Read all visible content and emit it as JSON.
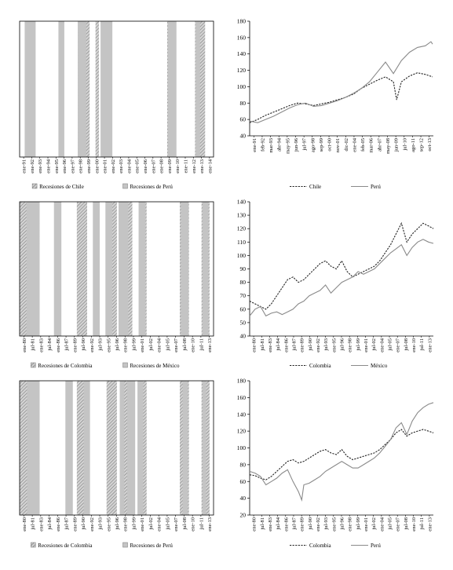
{
  "colors": {
    "gray_bar": "#c4c4c4",
    "hatch_bar": "#a9a9a9",
    "line_dark": "#222222",
    "line_gray": "#8a8a8a"
  },
  "chart_data": [
    {
      "type": "bar",
      "subtype": "recession-shading",
      "x_tick_labels": [
        "ene-91",
        "ene-92",
        "ene-93",
        "ene-94",
        "ene-95",
        "ene-96",
        "ene-97",
        "ene-98",
        "ene-99",
        "ene-00",
        "ene-01",
        "ene-02",
        "ene-03",
        "ene-04",
        "ene-05",
        "ene-06",
        "ene-07",
        "ene-08",
        "ene-09",
        "ene-10",
        "ene-11",
        "ene-12",
        "ene-13",
        "ene-14"
      ],
      "x_range": [
        1991.0,
        2014.0
      ],
      "legend": [
        "Recesiones de Chile",
        "Recesiones de Perú"
      ],
      "legend_placement": "bottom",
      "series": [
        {
          "name": "Recesiones de Chile",
          "style": "hatched",
          "periods": [
            [
              1997.9,
              1999.3
            ],
            [
              2000.0,
              2000.4
            ],
            [
              2008.5,
              2009.5
            ],
            [
              2011.8,
              2013.0
            ]
          ]
        },
        {
          "name": "Recesiones de Perú",
          "style": "solid",
          "periods": [
            [
              1991.6,
              1992.9
            ],
            [
              1995.6,
              1996.3
            ],
            [
              1997.9,
              1998.9
            ],
            [
              2000.6,
              2002.0
            ],
            [
              2008.6,
              2009.6
            ],
            [
              2011.9,
              2012.4
            ]
          ]
        }
      ]
    },
    {
      "type": "line",
      "x_tick_labels": [
        "ene-91",
        "feb-92",
        "mar-93",
        "abr-94",
        "may-95",
        "jun-96",
        "jul-97",
        "ago-98",
        "sep-99",
        "oct-00",
        "nov-01",
        "dic-02",
        "ene-04",
        "feb-05",
        "mar-06",
        "abr-07",
        "may-08",
        "jun-09",
        "jul-10",
        "ago-11",
        "sep-12",
        "oct-13"
      ],
      "x_range": [
        1991.0,
        2014.0
      ],
      "y_ticks": [
        40,
        60,
        80,
        100,
        120,
        140,
        160,
        180
      ],
      "ylim": [
        40,
        180
      ],
      "legend": [
        "Chile",
        "Perú"
      ],
      "legend_placement": "bottom",
      "series": [
        {
          "name": "Chile",
          "style": "dashed",
          "x": [
            1991,
            1992,
            1993,
            1994,
            1995,
            1996,
            1997,
            1998,
            1999,
            2000,
            2001,
            2002,
            2003,
            2004,
            2005,
            2006,
            2007,
            2008,
            2009,
            2009.4,
            2010,
            2011,
            2012,
            2013,
            2013.9
          ],
          "values": [
            56,
            60,
            65,
            69,
            73,
            77,
            80,
            79,
            77,
            79,
            81,
            84,
            87,
            91,
            98,
            103,
            108,
            112,
            106,
            84,
            106,
            113,
            117,
            115,
            112
          ]
        },
        {
          "name": "Perú",
          "style": "solid",
          "x": [
            1991,
            1992,
            1993,
            1994,
            1995,
            1996,
            1997,
            1998,
            1999,
            2000,
            2001,
            2002,
            2003,
            2004,
            2005,
            2006,
            2007,
            2008,
            2009,
            2010,
            2011,
            2012,
            2013,
            2013.7,
            2013.9
          ],
          "values": [
            58,
            56,
            60,
            64,
            69,
            74,
            78,
            80,
            76,
            77,
            80,
            83,
            87,
            92,
            98,
            106,
            118,
            130,
            116,
            132,
            142,
            148,
            150,
            155,
            152
          ]
        }
      ]
    },
    {
      "type": "bar",
      "subtype": "recession-shading",
      "x_tick_labels": [
        "ene-80",
        "jul-81",
        "ene-83",
        "jul-84",
        "ene-86",
        "jul-87",
        "ene-89",
        "jul-90",
        "ene-92",
        "jul-93",
        "ene-95",
        "jul-96",
        "ene-98",
        "jul-99",
        "ene-01",
        "jul-02",
        "ene-04",
        "jul-05",
        "ene-07",
        "jul-08",
        "ene-10",
        "jul-11",
        "ene-13"
      ],
      "x_range": [
        1980.0,
        2013.9
      ],
      "legend": [
        "Recesiones de Colombia",
        "Recesiones de México"
      ],
      "legend_placement": "bottom",
      "series": [
        {
          "name": "Recesiones de Colombia",
          "style": "hatched",
          "periods": [
            [
              1980.0,
              1983.5
            ],
            [
              1990.0,
              1991.8
            ],
            [
              1995.2,
              1997.0
            ],
            [
              1998.2,
              1999.7
            ],
            [
              2001.0,
              2002.2
            ],
            [
              2008.0,
              2009.6
            ],
            [
              2011.8,
              2013.2
            ]
          ]
        },
        {
          "name": "Recesiones de México",
          "style": "solid",
          "periods": [
            [
              1981.2,
              1983.5
            ],
            [
              1986.0,
              1987.3
            ],
            [
              1992.8,
              1994.0
            ],
            [
              1995.0,
              1996.2
            ],
            [
              1997.3,
              1999.0
            ],
            [
              2000.8,
              2002.0
            ],
            [
              2008.2,
              2009.5
            ],
            [
              2012.0,
              2013.0
            ]
          ]
        }
      ]
    },
    {
      "type": "line",
      "x_tick_labels": [
        "ene-80",
        "jul-81",
        "ene-83",
        "jul-84",
        "ene-86",
        "jul-87",
        "ene-89",
        "jul-90",
        "ene-92",
        "jul-93",
        "ene-95",
        "jul-96",
        "ene-98",
        "jul-99",
        "ene-01",
        "jul-02",
        "ene-04",
        "jul-05",
        "ene-07",
        "jul-08",
        "ene-10",
        "jul-11",
        "ene-13"
      ],
      "x_range": [
        1980.0,
        2013.9
      ],
      "y_ticks": [
        40,
        50,
        60,
        70,
        80,
        90,
        100,
        110,
        120,
        130,
        140
      ],
      "ylim": [
        40,
        140
      ],
      "legend": [
        "Colombia",
        "México"
      ],
      "legend_placement": "bottom",
      "series": [
        {
          "name": "Colombia",
          "style": "dashed",
          "x": [
            1980,
            1981,
            1982,
            1983,
            1984,
            1985,
            1986,
            1987,
            1988,
            1989,
            1990,
            1991,
            1992,
            1993,
            1994,
            1995,
            1996,
            1997,
            1998,
            1999,
            2000,
            2001,
            2002,
            2003,
            2004,
            2005,
            2006,
            2007,
            2008,
            2009,
            2010,
            2011,
            2012,
            2013,
            2013.9
          ],
          "values": [
            66,
            64,
            62,
            60,
            64,
            70,
            76,
            82,
            84,
            80,
            82,
            86,
            90,
            94,
            96,
            92,
            90,
            96,
            88,
            84,
            86,
            88,
            90,
            92,
            96,
            102,
            108,
            116,
            124,
            110,
            116,
            120,
            124,
            122,
            120
          ]
        },
        {
          "name": "México",
          "style": "solid",
          "x": [
            1980,
            1981,
            1982,
            1983,
            1984,
            1985,
            1986,
            1987,
            1988,
            1989,
            1990,
            1991,
            1992,
            1993,
            1994,
            1995,
            1996,
            1997,
            1998,
            1999,
            2000,
            2001,
            2002,
            2003,
            2004,
            2005,
            2006,
            2007,
            2008,
            2009,
            2010,
            2011,
            2012,
            2013,
            2013.9
          ],
          "values": [
            55,
            60,
            62,
            55,
            57,
            58,
            56,
            58,
            60,
            64,
            66,
            70,
            72,
            74,
            78,
            72,
            76,
            80,
            82,
            84,
            88,
            86,
            88,
            90,
            94,
            98,
            102,
            105,
            108,
            100,
            106,
            110,
            112,
            110,
            109
          ]
        }
      ]
    },
    {
      "type": "bar",
      "subtype": "recession-shading",
      "x_tick_labels": [
        "ene-80",
        "jul-81",
        "ene-83",
        "jul-84",
        "ene-86",
        "jul-87",
        "ene-89",
        "jul-90",
        "ene-92",
        "jul-93",
        "ene-95",
        "jul-96",
        "ene-98",
        "jul-99",
        "ene-01",
        "jul-02",
        "ene-04",
        "jul-05",
        "ene-07",
        "jul-08",
        "ene-10",
        "jul-11",
        "ene-13"
      ],
      "x_range": [
        1980.0,
        2013.9
      ],
      "legend": [
        "Recesiones de Colombia",
        "Recesiones de Perú"
      ],
      "legend_placement": "bottom",
      "series": [
        {
          "name": "Recesiones de Colombia",
          "style": "hatched",
          "periods": [
            [
              1980.0,
              1983.5
            ],
            [
              1990.0,
              1991.8
            ],
            [
              1995.2,
              1997.0
            ],
            [
              1998.2,
              1999.7
            ],
            [
              2001.0,
              2002.2
            ],
            [
              2008.0,
              2009.6
            ],
            [
              2011.8,
              2013.2
            ]
          ]
        },
        {
          "name": "Recesiones de Perú",
          "style": "solid",
          "periods": [
            [
              1981.3,
              1983.5
            ],
            [
              1988.0,
              1989.3
            ],
            [
              1991.2,
              1992.3
            ],
            [
              1997.5,
              1998.3
            ],
            [
              1998.8,
              2000.2
            ],
            [
              2000.6,
              2001.6
            ],
            [
              2008.5,
              2009.4
            ],
            [
              2012.0,
              2012.6
            ]
          ]
        }
      ]
    },
    {
      "type": "line",
      "x_tick_labels": [
        "ene-80",
        "jul-81",
        "ene-83",
        "jul-84",
        "ene-86",
        "jul-87",
        "ene-89",
        "jul-90",
        "ene-92",
        "jul-93",
        "ene-95",
        "jul-96",
        "ene-98",
        "jul-99",
        "ene-01",
        "jul-02",
        "ene-04",
        "jul-05",
        "ene-07",
        "jul-08",
        "ene-10",
        "jul-11",
        "ene-13"
      ],
      "x_range": [
        1980.0,
        2013.9
      ],
      "y_ticks": [
        20,
        40,
        60,
        80,
        100,
        120,
        140,
        160,
        180
      ],
      "ylim": [
        20,
        180
      ],
      "legend": [
        "Colombia",
        "Perú"
      ],
      "legend_placement": "bottom",
      "series": [
        {
          "name": "Colombia",
          "style": "dashed",
          "x": [
            1980,
            1981,
            1982,
            1983,
            1984,
            1985,
            1986,
            1987,
            1988,
            1989,
            1990,
            1991,
            1992,
            1993,
            1994,
            1995,
            1996,
            1997,
            1998,
            1999,
            2000,
            2001,
            2002,
            2003,
            2004,
            2005,
            2006,
            2007,
            2008,
            2009,
            2010,
            2011,
            2012,
            2013,
            2013.9
          ],
          "values": [
            68,
            67,
            64,
            62,
            66,
            72,
            78,
            84,
            86,
            82,
            84,
            88,
            92,
            96,
            98,
            94,
            92,
            98,
            90,
            86,
            88,
            90,
            92,
            94,
            98,
            104,
            110,
            118,
            122,
            114,
            118,
            120,
            122,
            120,
            118
          ]
        },
        {
          "name": "Perú",
          "style": "solid",
          "x": [
            1980,
            1981,
            1982,
            1983,
            1984,
            1985,
            1986,
            1987,
            1988,
            1989,
            1989.6,
            1990,
            1991,
            1992,
            1993,
            1994,
            1995,
            1996,
            1997,
            1998,
            1999,
            2000,
            2001,
            2002,
            2003,
            2004,
            2005,
            2006,
            2007,
            2008,
            2009,
            2010,
            2011,
            2012,
            2013,
            2013.9
          ],
          "values": [
            72,
            70,
            66,
            56,
            60,
            64,
            70,
            74,
            60,
            48,
            38,
            56,
            58,
            62,
            66,
            72,
            76,
            80,
            84,
            80,
            76,
            76,
            80,
            84,
            88,
            94,
            102,
            110,
            124,
            130,
            116,
            132,
            142,
            148,
            152,
            154
          ]
        }
      ]
    }
  ]
}
